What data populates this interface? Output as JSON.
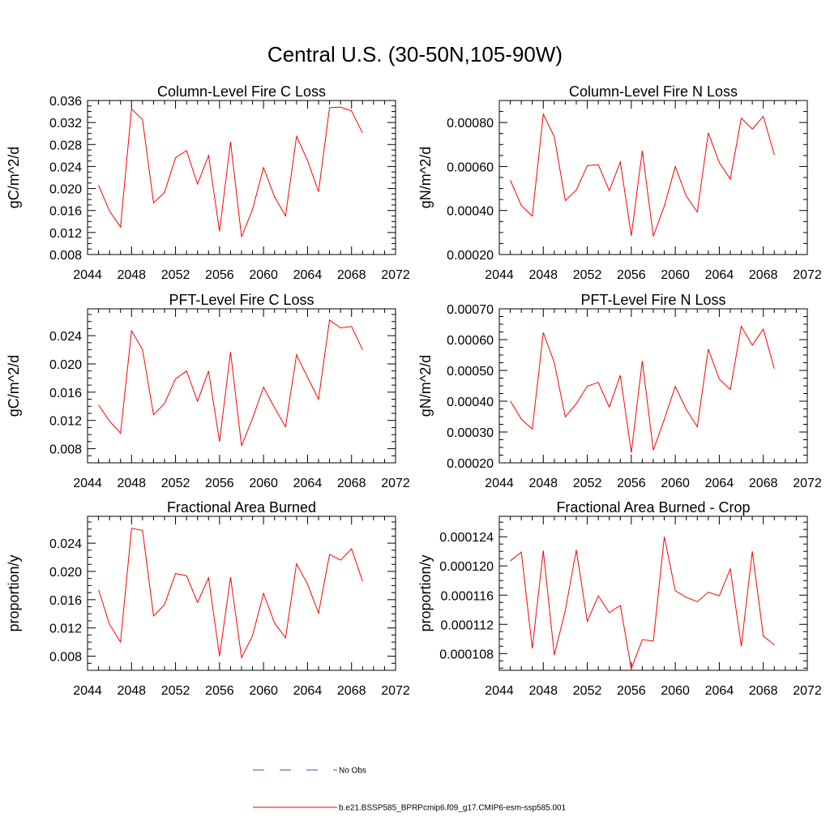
{
  "figure": {
    "title": "Central U.S. (30-50N,105-90W)",
    "series_color": "#ff0000",
    "legend": {
      "obs_label": "No Obs",
      "obs_color": "#4a4aa8",
      "model_label": "b.e21.BSSP585_BPRPcmip6.f09_g17.CMIP6-esm-ssp585.001",
      "model_color": "#ff0000"
    }
  },
  "chart_data": [
    {
      "type": "line",
      "title": "Column-Level Fire C Loss",
      "ylabel": "gC/m^2/d",
      "xlim": [
        2044,
        2072
      ],
      "xticks": [
        "2044",
        "2048",
        "2052",
        "2056",
        "2060",
        "2064",
        "2068",
        "2072"
      ],
      "ylim": [
        0.008,
        0.036
      ],
      "yticks": [
        "0.008",
        "0.012",
        "0.016",
        "0.020",
        "0.024",
        "0.028",
        "0.032",
        "0.036"
      ],
      "x": [
        2045,
        2046,
        2047,
        2048,
        2049,
        2050,
        2051,
        2052,
        2053,
        2054,
        2055,
        2056,
        2057,
        2058,
        2059,
        2060,
        2061,
        2062,
        2063,
        2064,
        2065,
        2066,
        2067,
        2068,
        2069
      ],
      "values": [
        0.0206,
        0.0159,
        0.013,
        0.0345,
        0.0325,
        0.0174,
        0.0193,
        0.0256,
        0.0269,
        0.0208,
        0.026,
        0.0122,
        0.0285,
        0.0112,
        0.0162,
        0.0238,
        0.0185,
        0.015,
        0.0295,
        0.0251,
        0.0194,
        0.0347,
        0.0348,
        0.0341,
        0.0301
      ]
    },
    {
      "type": "line",
      "title": "Column-Level Fire N Loss",
      "ylabel": "gN/m^2/d",
      "xlim": [
        2044,
        2072
      ],
      "xticks": [
        "2044",
        "2048",
        "2052",
        "2056",
        "2060",
        "2064",
        "2068",
        "2072"
      ],
      "ylim": [
        0.0002,
        0.0009
      ],
      "yticks": [
        "0.00020",
        "0.00040",
        "0.00060",
        "0.00080"
      ],
      "x": [
        2045,
        2046,
        2047,
        2048,
        2049,
        2050,
        2051,
        2052,
        2053,
        2054,
        2055,
        2056,
        2057,
        2058,
        2059,
        2060,
        2061,
        2062,
        2063,
        2064,
        2065,
        2066,
        2067,
        2068,
        2069
      ],
      "values": [
        0.000538,
        0.000423,
        0.000375,
        0.000838,
        0.000735,
        0.000445,
        0.000493,
        0.000604,
        0.000608,
        0.00049,
        0.000621,
        0.000285,
        0.000672,
        0.000283,
        0.00042,
        0.0006,
        0.000465,
        0.000393,
        0.000753,
        0.000618,
        0.000543,
        0.00082,
        0.00077,
        0.000828,
        0.000653
      ]
    },
    {
      "type": "line",
      "title": "PFT-Level Fire C Loss",
      "ylabel": "gC/m^2/d",
      "xlim": [
        2044,
        2072
      ],
      "xticks": [
        "2044",
        "2048",
        "2052",
        "2056",
        "2060",
        "2064",
        "2068",
        "2072"
      ],
      "ylim": [
        0.006,
        0.0278
      ],
      "yticks": [
        "0.008",
        "0.012",
        "0.016",
        "0.020",
        "0.024"
      ],
      "x": [
        2045,
        2046,
        2047,
        2048,
        2049,
        2050,
        2051,
        2052,
        2053,
        2054,
        2055,
        2056,
        2057,
        2058,
        2059,
        2060,
        2061,
        2062,
        2063,
        2064,
        2065,
        2066,
        2067,
        2068,
        2069
      ],
      "values": [
        0.0142,
        0.0119,
        0.0102,
        0.0247,
        0.022,
        0.0128,
        0.0144,
        0.0179,
        0.019,
        0.0147,
        0.019,
        0.009,
        0.0217,
        0.0084,
        0.0123,
        0.0167,
        0.0138,
        0.0111,
        0.0213,
        0.0181,
        0.015,
        0.0262,
        0.0251,
        0.0253,
        0.022
      ]
    },
    {
      "type": "line",
      "title": "PFT-Level Fire N Loss",
      "ylabel": "gN/m^2/d",
      "xlim": [
        2044,
        2072
      ],
      "xticks": [
        "2044",
        "2048",
        "2052",
        "2056",
        "2060",
        "2064",
        "2068",
        "2072"
      ],
      "ylim": [
        0.0002,
        0.0007
      ],
      "yticks": [
        "0.00020",
        "0.00030",
        "0.00040",
        "0.00050",
        "0.00060",
        "0.00070"
      ],
      "x": [
        2045,
        2046,
        2047,
        2048,
        2049,
        2050,
        2051,
        2052,
        2053,
        2054,
        2055,
        2056,
        2057,
        2058,
        2059,
        2060,
        2061,
        2062,
        2063,
        2064,
        2065,
        2066,
        2067,
        2068,
        2069
      ],
      "values": [
        0.000401,
        0.000342,
        0.00031,
        0.000623,
        0.000525,
        0.000349,
        0.000392,
        0.000449,
        0.000461,
        0.000381,
        0.000484,
        0.000233,
        0.000531,
        0.000241,
        0.000341,
        0.000448,
        0.000373,
        0.000317,
        0.000569,
        0.000472,
        0.000438,
        0.000643,
        0.000582,
        0.000634,
        0.000506
      ]
    },
    {
      "type": "line",
      "title": "Fractional Area Burned",
      "ylabel": "proportion/y",
      "xlim": [
        2044,
        2072
      ],
      "xticks": [
        "2044",
        "2048",
        "2052",
        "2056",
        "2060",
        "2064",
        "2068",
        "2072"
      ],
      "ylim": [
        0.006,
        0.0278
      ],
      "yticks": [
        "0.008",
        "0.012",
        "0.016",
        "0.020",
        "0.024"
      ],
      "x": [
        2045,
        2046,
        2047,
        2048,
        2049,
        2050,
        2051,
        2052,
        2053,
        2054,
        2055,
        2056,
        2057,
        2058,
        2059,
        2060,
        2061,
        2062,
        2063,
        2064,
        2065,
        2066,
        2067,
        2068,
        2069
      ],
      "values": [
        0.0174,
        0.0125,
        0.01,
        0.0261,
        0.0258,
        0.0137,
        0.0153,
        0.0197,
        0.0194,
        0.0156,
        0.0191,
        0.008,
        0.0192,
        0.0078,
        0.0109,
        0.0169,
        0.0127,
        0.0106,
        0.0211,
        0.0182,
        0.0141,
        0.0224,
        0.0216,
        0.0232,
        0.0186
      ]
    },
    {
      "type": "line",
      "title": "Fractional Area Burned - Crop",
      "ylabel": "proportion/y",
      "xlim": [
        2044,
        2072
      ],
      "xticks": [
        "2044",
        "2048",
        "2052",
        "2056",
        "2060",
        "2064",
        "2068",
        "2072"
      ],
      "ylim": [
        0.0001057,
        0.0001268
      ],
      "yticks": [
        "0.000108",
        "0.000112",
        "0.000116",
        "0.000120",
        "0.000124"
      ],
      "x": [
        2045,
        2046,
        2047,
        2048,
        2049,
        2050,
        2051,
        2052,
        2053,
        2054,
        2055,
        2056,
        2057,
        2058,
        2059,
        2060,
        2061,
        2062,
        2063,
        2064,
        2065,
        2066,
        2067,
        2068,
        2069
      ],
      "values": [
        0.0001207,
        0.0001219,
        0.0001087,
        0.0001221,
        0.0001078,
        0.0001139,
        0.0001222,
        0.0001124,
        0.0001159,
        0.0001136,
        0.0001146,
        0.0001059,
        0.0001099,
        0.0001097,
        0.000124,
        0.0001166,
        0.0001157,
        0.0001151,
        0.0001164,
        0.0001159,
        0.0001196,
        0.000109,
        0.000122,
        0.0001104,
        0.0001092
      ]
    }
  ]
}
